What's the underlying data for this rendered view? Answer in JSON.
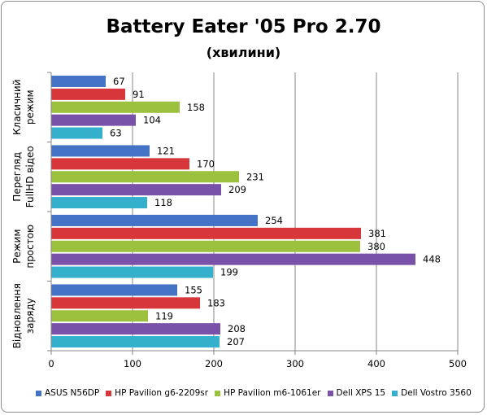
{
  "chart_data": {
    "type": "bar",
    "orientation": "horizontal",
    "title": "Battery Eater '05 Pro 2.70",
    "subtitle": "(хвилини)",
    "categories": [
      "Класичний режим",
      "Перегляд FullHD відео",
      "Режим простою",
      "Відновлення заряду"
    ],
    "category_lines": [
      [
        "Класичний",
        "режим"
      ],
      [
        "Перегляд",
        "FullHD відео"
      ],
      [
        "Режим",
        "простою"
      ],
      [
        "Відновлення",
        "заряду"
      ]
    ],
    "series": [
      {
        "name": "ASUS N56DP",
        "color": "#4472c4",
        "values": [
          67,
          121,
          254,
          155
        ]
      },
      {
        "name": "HP Pavilion g6-2209sr",
        "color": "#d7373a",
        "values": [
          91,
          170,
          381,
          183
        ]
      },
      {
        "name": "HP Pavilion m6-1061er",
        "color": "#9bc13f",
        "values": [
          158,
          231,
          380,
          119
        ]
      },
      {
        "name": "Dell XPS 15",
        "color": "#7951a8",
        "values": [
          104,
          209,
          448,
          208
        ]
      },
      {
        "name": "Dell Vostro 3560",
        "color": "#35b0cc",
        "values": [
          63,
          118,
          199,
          207
        ]
      }
    ],
    "xlim": [
      0,
      500
    ],
    "xticks": [
      0,
      100,
      200,
      300,
      400,
      500
    ],
    "grid": true,
    "legend_position": "bottom"
  }
}
